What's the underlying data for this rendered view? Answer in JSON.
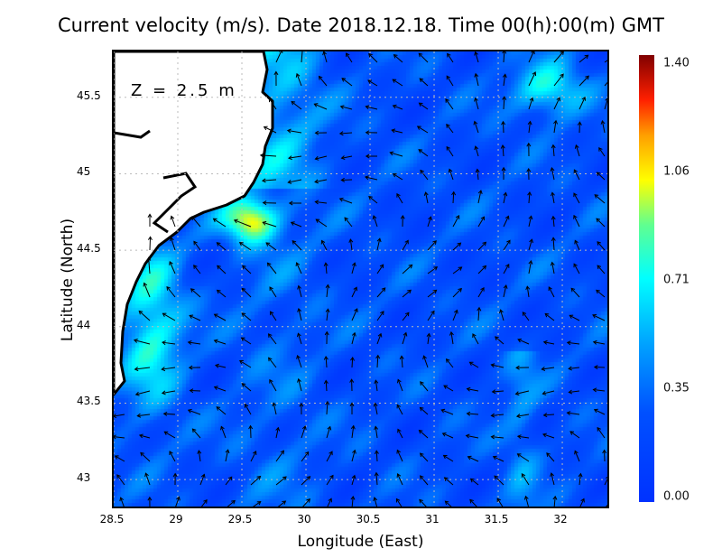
{
  "title": "Current velocity (m/s). Date 2018.12.18. Time 00(h):00(m) GMT",
  "depth_label": "Z = 2.5 m",
  "chart_data": {
    "type": "heatmap",
    "title": "Current velocity (m/s). Date 2018.12.18. Time 00(h):00(m) GMT",
    "xlabel": "Longitude (East)",
    "ylabel": "Latitude (North)",
    "xlim": [
      28.5,
      32.38
    ],
    "ylim": [
      42.8,
      45.8
    ],
    "xticks": [
      "28.5",
      "29",
      "29.5",
      "30",
      "30.5",
      "31",
      "31.5",
      "32"
    ],
    "yticks": [
      "45.5",
      "45",
      "44.5",
      "44",
      "43.5",
      "43"
    ],
    "grid": true,
    "colorbar": {
      "label_ticks": [
        "1.40",
        "1.06",
        "0.71",
        "0.35",
        "0.00"
      ],
      "range": [
        0,
        1.4
      ]
    },
    "overlay": "velocity vectors"
  }
}
